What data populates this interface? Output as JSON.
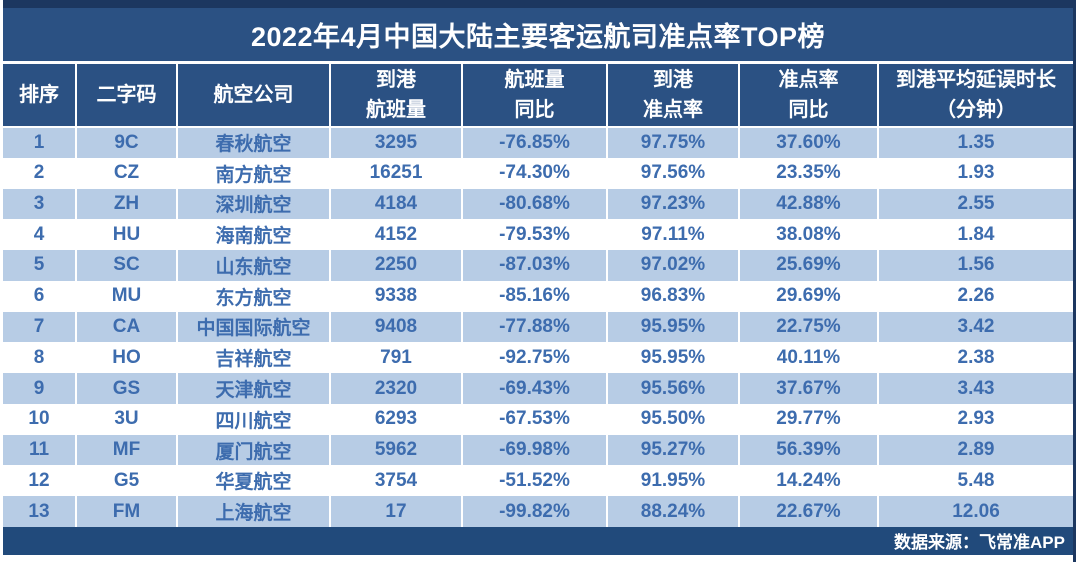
{
  "title": "2022年4月中国大陆主要客运航司准点率TOP榜",
  "chart_data": {
    "type": "table",
    "title": "2022年4月中国大陆主要客运航司准点率TOP榜",
    "columns": [
      "排序",
      "二字码",
      "航空公司",
      "到港航班量",
      "航班量同比",
      "到港准点率",
      "准点率同比",
      "到港平均延误时长（分钟）"
    ],
    "column_display": [
      "排序",
      "二字码",
      "航空公司",
      "到港\n航班量",
      "航班量\n同比",
      "到港\n准点率",
      "准点率\n同比",
      "到港平均延误时长\n（分钟）"
    ],
    "rows": [
      [
        "1",
        "9C",
        "春秋航空",
        "3295",
        "-76.85%",
        "97.75%",
        "37.60%",
        "1.35"
      ],
      [
        "2",
        "CZ",
        "南方航空",
        "16251",
        "-74.30%",
        "97.56%",
        "23.35%",
        "1.93"
      ],
      [
        "3",
        "ZH",
        "深圳航空",
        "4184",
        "-80.68%",
        "97.23%",
        "42.88%",
        "2.55"
      ],
      [
        "4",
        "HU",
        "海南航空",
        "4152",
        "-79.53%",
        "97.11%",
        "38.08%",
        "1.84"
      ],
      [
        "5",
        "SC",
        "山东航空",
        "2250",
        "-87.03%",
        "97.02%",
        "25.69%",
        "1.56"
      ],
      [
        "6",
        "MU",
        "东方航空",
        "9338",
        "-85.16%",
        "96.83%",
        "29.69%",
        "2.26"
      ],
      [
        "7",
        "CA",
        "中国国际航空",
        "9408",
        "-77.88%",
        "95.95%",
        "22.75%",
        "3.42"
      ],
      [
        "8",
        "HO",
        "吉祥航空",
        "791",
        "-92.75%",
        "95.95%",
        "40.11%",
        "2.38"
      ],
      [
        "9",
        "GS",
        "天津航空",
        "2320",
        "-69.43%",
        "95.56%",
        "37.67%",
        "3.43"
      ],
      [
        "10",
        "3U",
        "四川航空",
        "6293",
        "-67.53%",
        "95.50%",
        "29.77%",
        "2.93"
      ],
      [
        "11",
        "MF",
        "厦门航空",
        "5962",
        "-69.98%",
        "95.27%",
        "56.39%",
        "2.89"
      ],
      [
        "12",
        "G5",
        "华夏航空",
        "3754",
        "-51.52%",
        "91.95%",
        "14.24%",
        "5.48"
      ],
      [
        "13",
        "FM",
        "上海航空",
        "17",
        "-99.82%",
        "88.24%",
        "22.67%",
        "12.06"
      ]
    ]
  },
  "footer": {
    "source_label": "数据来源：飞常准APP"
  },
  "colors": {
    "header_bg": "#2b5183",
    "dark_border": "#1c3760",
    "stripe_bg": "#b7cce5",
    "data_text": "#3d6cae",
    "footer_bg": "#214a7b",
    "header_text": "#ffffff"
  }
}
